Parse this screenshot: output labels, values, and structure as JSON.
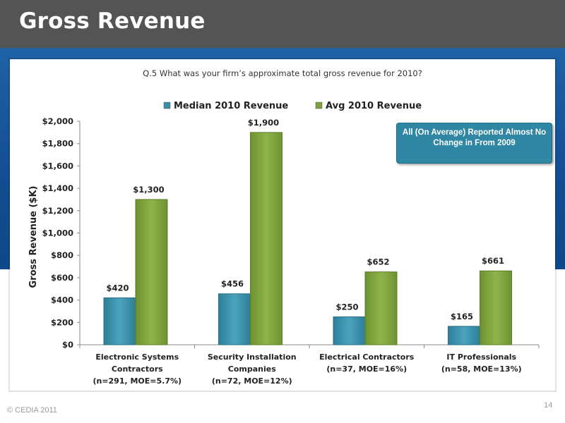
{
  "slide": {
    "title": "Gross Revenue",
    "question": "Q.5 What was your firm’s approximate total gross revenue for 2010?",
    "callout": "All (On Average) Reported Almost No Change in From 2009",
    "copyright": "© CEDIA 2011",
    "page_number": "14"
  },
  "colors": {
    "header_bg": "#545454",
    "blue_band": "#1a5a9e",
    "median_series": "#3a8fa8",
    "avg_series": "#7ea23c",
    "callout_bg": "#2f87a3"
  },
  "chart_data": {
    "type": "bar",
    "ylabel": "Gross Revenue ($K)",
    "xlabel": "",
    "ylim": [
      0,
      2000
    ],
    "yticks": [
      0,
      200,
      400,
      600,
      800,
      1000,
      1200,
      1400,
      1600,
      1800,
      2000
    ],
    "ytick_labels": [
      "$0",
      "$200",
      "$400",
      "$600",
      "$800",
      "$1,000",
      "$1,200",
      "$1,400",
      "$1,600",
      "$1,800",
      "$2,000"
    ],
    "legend_position": "top",
    "categories": [
      [
        "Electronic Systems",
        "Contractors",
        "(n=291, MOE=5.7%)"
      ],
      [
        "Security Installation",
        "Companies",
        "(n=72, MOE=12%)"
      ],
      [
        "Electrical Contractors",
        "(n=37, MOE=16%)"
      ],
      [
        "IT Professionals",
        "(n=58, MOE=13%)"
      ]
    ],
    "series": [
      {
        "name": "Median 2010 Revenue",
        "values": [
          420,
          456,
          250,
          165
        ],
        "labels": [
          "$420",
          "$456",
          "$250",
          "$165"
        ],
        "color": "#3a8fa8"
      },
      {
        "name": "Avg 2010 Revenue",
        "values": [
          1300,
          1900,
          652,
          661
        ],
        "labels": [
          "$1,300",
          "$1,900",
          "$652",
          "$661"
        ],
        "color": "#7ea23c"
      }
    ]
  }
}
